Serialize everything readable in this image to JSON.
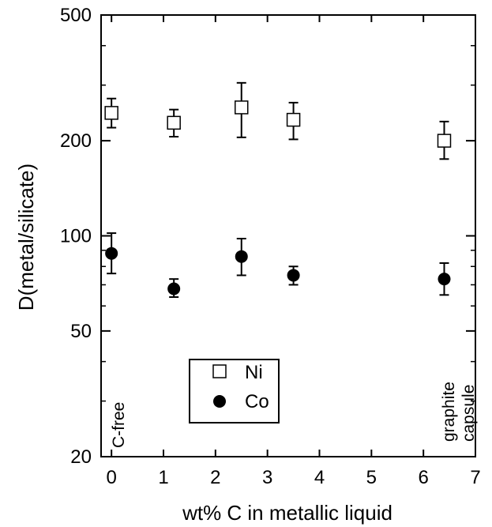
{
  "chart_data": {
    "type": "scatter",
    "title": "",
    "xlabel": "wt% C in metallic liquid",
    "ylabel": "D(metal/silicate)",
    "xlim": [
      -0.2,
      7
    ],
    "ylim": [
      20,
      500
    ],
    "yscale": "log",
    "x_ticks": [
      0,
      1,
      2,
      3,
      4,
      5,
      6,
      7
    ],
    "y_ticks": [
      20,
      50,
      100,
      200,
      500
    ],
    "x_tick_labels": [
      "0",
      "1",
      "2",
      "3",
      "4",
      "5",
      "6",
      "7"
    ],
    "y_tick_labels": [
      "20",
      "50",
      "100",
      "200",
      "500"
    ],
    "grid": false,
    "legend_position": "bottom-center",
    "series": [
      {
        "name": "Ni",
        "marker": "open-square",
        "color": "#000000",
        "points": [
          {
            "x": 0.0,
            "y": 245,
            "ylow": 220,
            "yhigh": 272
          },
          {
            "x": 1.2,
            "y": 228,
            "ylow": 206,
            "yhigh": 251
          },
          {
            "x": 2.5,
            "y": 255,
            "ylow": 205,
            "yhigh": 305
          },
          {
            "x": 3.5,
            "y": 233,
            "ylow": 202,
            "yhigh": 264
          },
          {
            "x": 6.4,
            "y": 200,
            "ylow": 175,
            "yhigh": 230
          }
        ]
      },
      {
        "name": "Co",
        "marker": "filled-circle",
        "color": "#000000",
        "points": [
          {
            "x": 0.0,
            "y": 88,
            "ylow": 76,
            "yhigh": 102
          },
          {
            "x": 1.2,
            "y": 68,
            "ylow": 64,
            "yhigh": 73
          },
          {
            "x": 2.5,
            "y": 86,
            "ylow": 75,
            "yhigh": 98
          },
          {
            "x": 3.5,
            "y": 75,
            "ylow": 70,
            "yhigh": 80
          },
          {
            "x": 6.4,
            "y": 73,
            "ylow": 65,
            "yhigh": 82
          }
        ]
      }
    ],
    "annotations": [
      {
        "text": "C-free",
        "x": 0.0
      },
      {
        "text": "graphite",
        "x": 6.4
      },
      {
        "text": "capsule",
        "x": 6.4
      }
    ]
  }
}
